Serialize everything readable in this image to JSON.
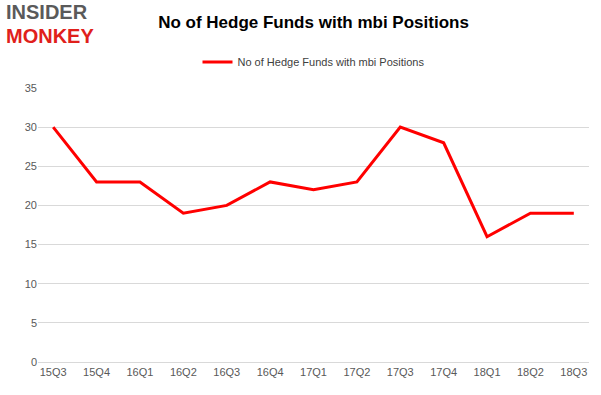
{
  "chart_data": {
    "type": "line",
    "title": "No of Hedge Funds with mbi Positions",
    "annotations": [
      "INSIDER",
      "MONKEY"
    ],
    "categories": [
      "15Q3",
      "15Q4",
      "16Q1",
      "16Q2",
      "16Q3",
      "16Q4",
      "17Q1",
      "17Q2",
      "17Q3",
      "17Q4",
      "18Q1",
      "18Q2",
      "18Q3"
    ],
    "series": [
      {
        "name": "No of Hedge Funds with mbi Positions",
        "color": "#ff0000",
        "values": [
          30,
          23,
          23,
          19,
          20,
          23,
          22,
          23,
          30,
          28,
          16,
          19,
          19
        ]
      }
    ],
    "ylim": [
      0,
      35
    ],
    "yticks": [
      0,
      5,
      10,
      15,
      20,
      25,
      30,
      35
    ],
    "grid": true,
    "legend": "top"
  }
}
